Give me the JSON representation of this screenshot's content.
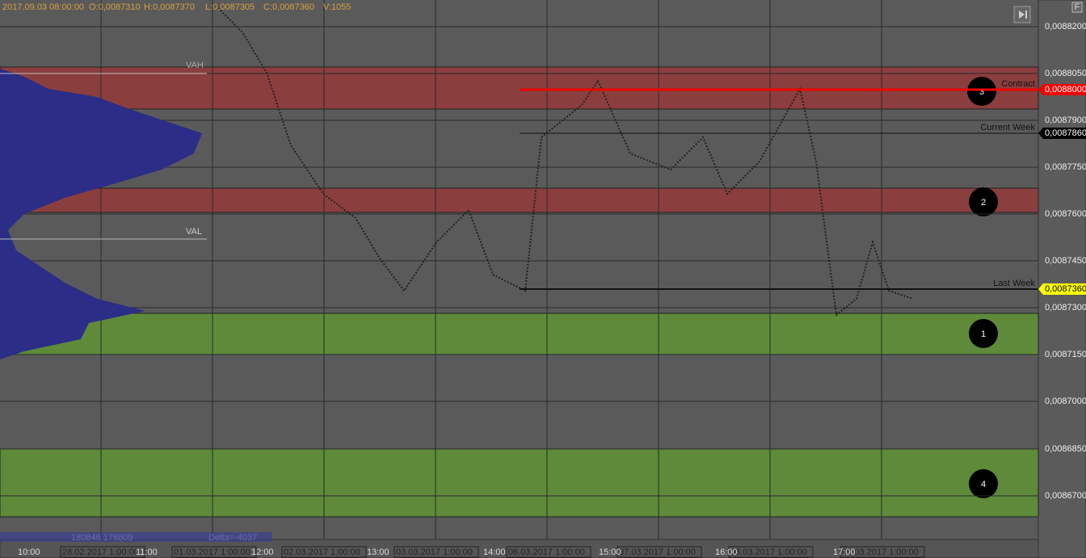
{
  "header": {
    "datetime": "2017.09.03 08:00:00",
    "open": "O:0,0087310",
    "high": "H:0,0087370",
    "low": "L:0,0087305",
    "close": "C:0,0087360",
    "volume": "V:1055"
  },
  "price_axis": {
    "labels": [
      "0,0088200",
      "0,0088050",
      "0,0087900",
      "0,0087750",
      "0,0087600",
      "0,0087450",
      "0,0087300",
      "0,0087150",
      "0,0087000",
      "0,0086850",
      "0,0086700"
    ]
  },
  "price_markers": [
    {
      "label": "Contract",
      "price": "0,0088000"
    },
    {
      "label": "Current Week",
      "price": "0,0087860"
    },
    {
      "label": "Last Week",
      "price": "0,0087360"
    }
  ],
  "profile_labels": {
    "vah": "VAH",
    "val": "VAL"
  },
  "zones": [
    "3",
    "2",
    "1",
    "4"
  ],
  "time_axis": {
    "labels": [
      "10:00",
      "11:00",
      "12:00",
      "13:00",
      "14:00",
      "15:00",
      "16:00",
      "17:00"
    ],
    "dates": [
      "28.02.2017 1:00:00",
      "01.03.2017 1:00:00",
      "02.03.2017 1:00:00",
      "03.03.2017 1:00:00",
      "06.03.2017 1:00:00",
      "07.03.2017 1:00:00",
      "08.03.2017 1:00:00",
      "09.03.2017 1:00:00"
    ]
  },
  "footer": {
    "volumes": "180846 176809",
    "delta": "Delta=-4037"
  },
  "corner_button": "F"
}
